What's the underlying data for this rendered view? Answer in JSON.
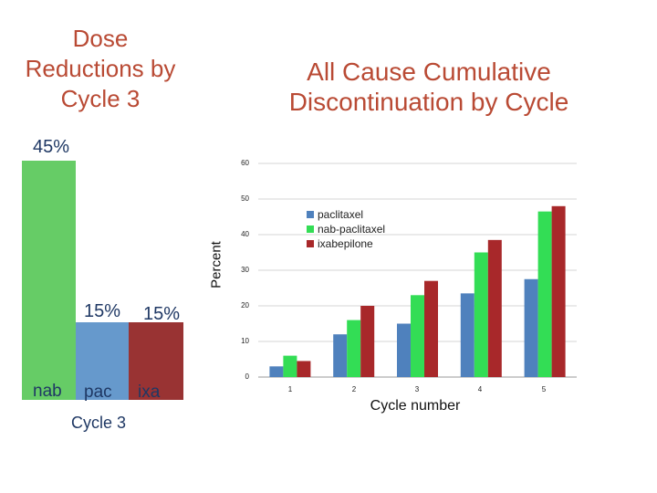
{
  "left_panel": {
    "title": "Dose Reductions by Cycle 3",
    "xlabel": "Cycle 3"
  },
  "right_panel": {
    "title": "All Cause Cumulative Discontinuation by Cycle"
  },
  "colors": {
    "title": "#b94a34",
    "nab_left": "#66cc66",
    "pac_left": "#6699cc",
    "ixa_left": "#993333",
    "paclitaxel": "#4f81bd",
    "nab_paclitaxel": "#33dd55",
    "ixabepilone": "#a8282a"
  },
  "chart_data": [
    {
      "type": "bar",
      "title": "Dose Reductions by Cycle 3",
      "categories": [
        "nab",
        "pac",
        "ixa"
      ],
      "values": [
        45,
        15,
        15
      ],
      "labels": [
        "45%",
        "15%",
        "15%"
      ],
      "xlabel": "Cycle 3",
      "ylabel": "",
      "ylim": [
        0,
        45
      ],
      "grid": false
    },
    {
      "type": "bar",
      "title": "All Cause Cumulative Discontinuation by Cycle",
      "categories": [
        "1",
        "2",
        "3",
        "4",
        "5"
      ],
      "series": [
        {
          "name": "paclitaxel",
          "values": [
            3,
            12,
            15,
            23.5,
            27.5
          ]
        },
        {
          "name": "nab-paclitaxel",
          "values": [
            6,
            16,
            23,
            35,
            46.5
          ]
        },
        {
          "name": "ixabepilone",
          "values": [
            4.5,
            20,
            27,
            38.5,
            48
          ]
        }
      ],
      "xlabel": "Cycle number",
      "ylabel": "Percent",
      "ylim": [
        0,
        60
      ],
      "yticks": [
        "0",
        "10",
        "20",
        "30",
        "40",
        "50",
        "60"
      ],
      "grid": true,
      "legend": "top-left inside plot"
    }
  ]
}
